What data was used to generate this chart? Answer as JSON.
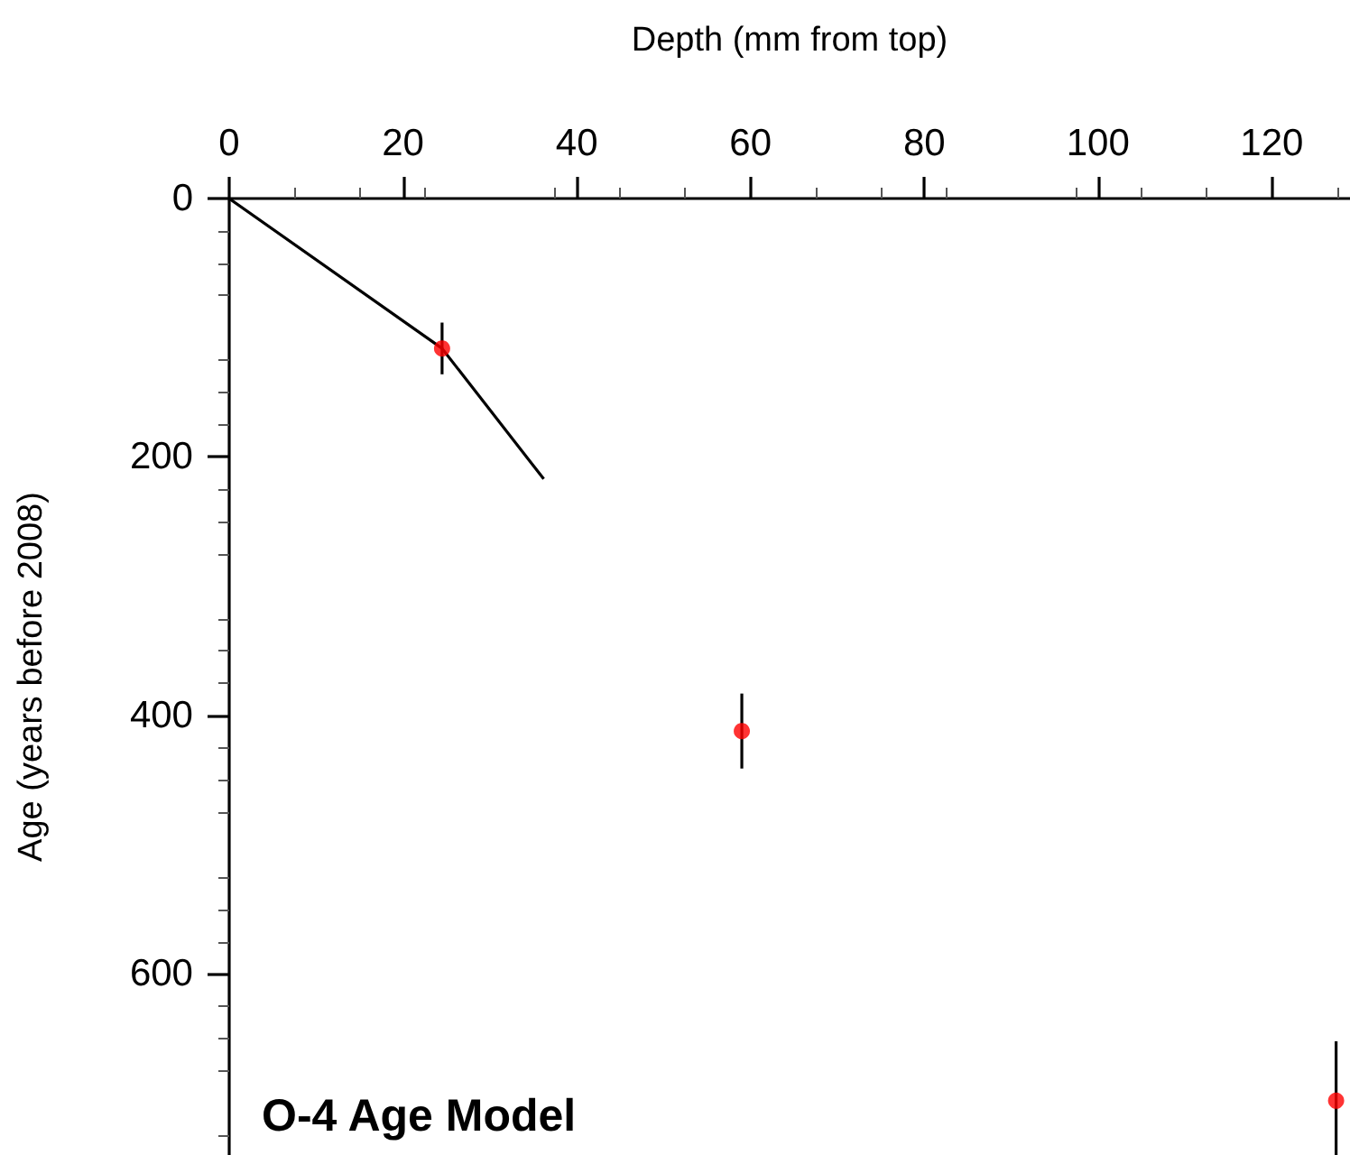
{
  "chart_data": {
    "type": "scatter",
    "title": "O-4 Age Model",
    "xlabel": "Depth (mm from top)",
    "ylabel": "Age (years before 2008)",
    "xlim": [
      0,
      129
    ],
    "xticks": [
      0,
      20,
      40,
      60,
      80,
      100,
      120
    ],
    "ylim": [
      740,
      0
    ],
    "yticks": [
      0,
      200,
      400,
      600
    ],
    "grid": false,
    "series": [
      {
        "type": "line",
        "color": "#000000",
        "marker": "none",
        "x": [
          0,
          24.5,
          36.2
        ],
        "values": [
          0,
          116,
          217
        ]
      },
      {
        "color": "#ff0000",
        "marker": "circle",
        "x": [
          24.5,
          59,
          127.4
        ],
        "values": [
          116,
          412,
          698
        ],
        "errors": [
          20,
          29,
          46
        ]
      }
    ]
  }
}
